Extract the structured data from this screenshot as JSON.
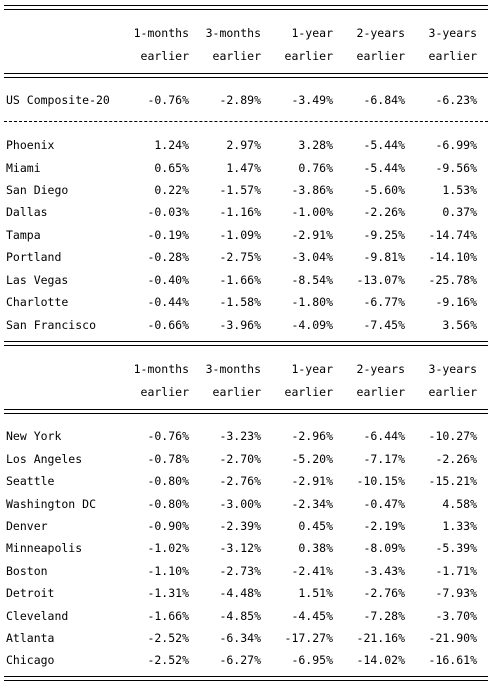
{
  "header_line1": [
    "1-months",
    "3-months",
    "1-year",
    "2-years",
    "3-years"
  ],
  "header_line2": [
    "earlier",
    "earlier",
    "earlier",
    "earlier",
    "earlier"
  ],
  "composite": {
    "name": "US Composite-20",
    "values": [
      "-0.76%",
      "-2.89%",
      "-3.49%",
      "-6.84%",
      "-6.23%"
    ]
  },
  "group1": [
    {
      "name": "Phoenix",
      "values": [
        "1.24%",
        "2.97%",
        "3.28%",
        "-5.44%",
        "-6.99%"
      ]
    },
    {
      "name": "Miami",
      "values": [
        "0.65%",
        "1.47%",
        "0.76%",
        "-5.44%",
        "-9.56%"
      ]
    },
    {
      "name": "San Diego",
      "values": [
        "0.22%",
        "-1.57%",
        "-3.86%",
        "-5.60%",
        "1.53%"
      ]
    },
    {
      "name": "Dallas",
      "values": [
        "-0.03%",
        "-1.16%",
        "-1.00%",
        "-2.26%",
        "0.37%"
      ]
    },
    {
      "name": "Tampa",
      "values": [
        "-0.19%",
        "-1.09%",
        "-2.91%",
        "-9.25%",
        "-14.74%"
      ]
    },
    {
      "name": "Portland",
      "values": [
        "-0.28%",
        "-2.75%",
        "-3.04%",
        "-9.81%",
        "-14.10%"
      ]
    },
    {
      "name": "Las Vegas",
      "values": [
        "-0.40%",
        "-1.66%",
        "-8.54%",
        "-13.07%",
        "-25.78%"
      ]
    },
    {
      "name": "Charlotte",
      "values": [
        "-0.44%",
        "-1.58%",
        "-1.80%",
        "-6.77%",
        "-9.16%"
      ]
    },
    {
      "name": "San Francisco",
      "values": [
        "-0.66%",
        "-3.96%",
        "-4.09%",
        "-7.45%",
        "3.56%"
      ]
    }
  ],
  "group2": [
    {
      "name": "New York",
      "values": [
        "-0.76%",
        "-3.23%",
        "-2.96%",
        "-6.44%",
        "-10.27%"
      ]
    },
    {
      "name": "Los Angeles",
      "values": [
        "-0.78%",
        "-2.70%",
        "-5.20%",
        "-7.17%",
        "-2.26%"
      ]
    },
    {
      "name": "Seattle",
      "values": [
        "-0.80%",
        "-2.76%",
        "-2.91%",
        "-10.15%",
        "-15.21%"
      ]
    },
    {
      "name": "Washington DC",
      "values": [
        "-0.80%",
        "-3.00%",
        "-2.34%",
        "-0.47%",
        "4.58%"
      ]
    },
    {
      "name": "Denver",
      "values": [
        "-0.90%",
        "-2.39%",
        "0.45%",
        "-2.19%",
        "1.33%"
      ]
    },
    {
      "name": "Minneapolis",
      "values": [
        "-1.02%",
        "-3.12%",
        "0.38%",
        "-8.09%",
        "-5.39%"
      ]
    },
    {
      "name": "Boston",
      "values": [
        "-1.10%",
        "-2.73%",
        "-2.41%",
        "-3.43%",
        "-1.71%"
      ]
    },
    {
      "name": "Detroit",
      "values": [
        "-1.31%",
        "-4.48%",
        "1.51%",
        "-2.76%",
        "-7.93%"
      ]
    },
    {
      "name": "Cleveland",
      "values": [
        "-1.66%",
        "-4.85%",
        "-4.45%",
        "-7.28%",
        "-3.70%"
      ]
    },
    {
      "name": "Atlanta",
      "values": [
        "-2.52%",
        "-6.34%",
        "-17.27%",
        "-21.16%",
        "-21.90%"
      ]
    },
    {
      "name": "Chicago",
      "values": [
        "-2.52%",
        "-6.27%",
        "-6.95%",
        "-14.02%",
        "-16.61%"
      ]
    }
  ]
}
